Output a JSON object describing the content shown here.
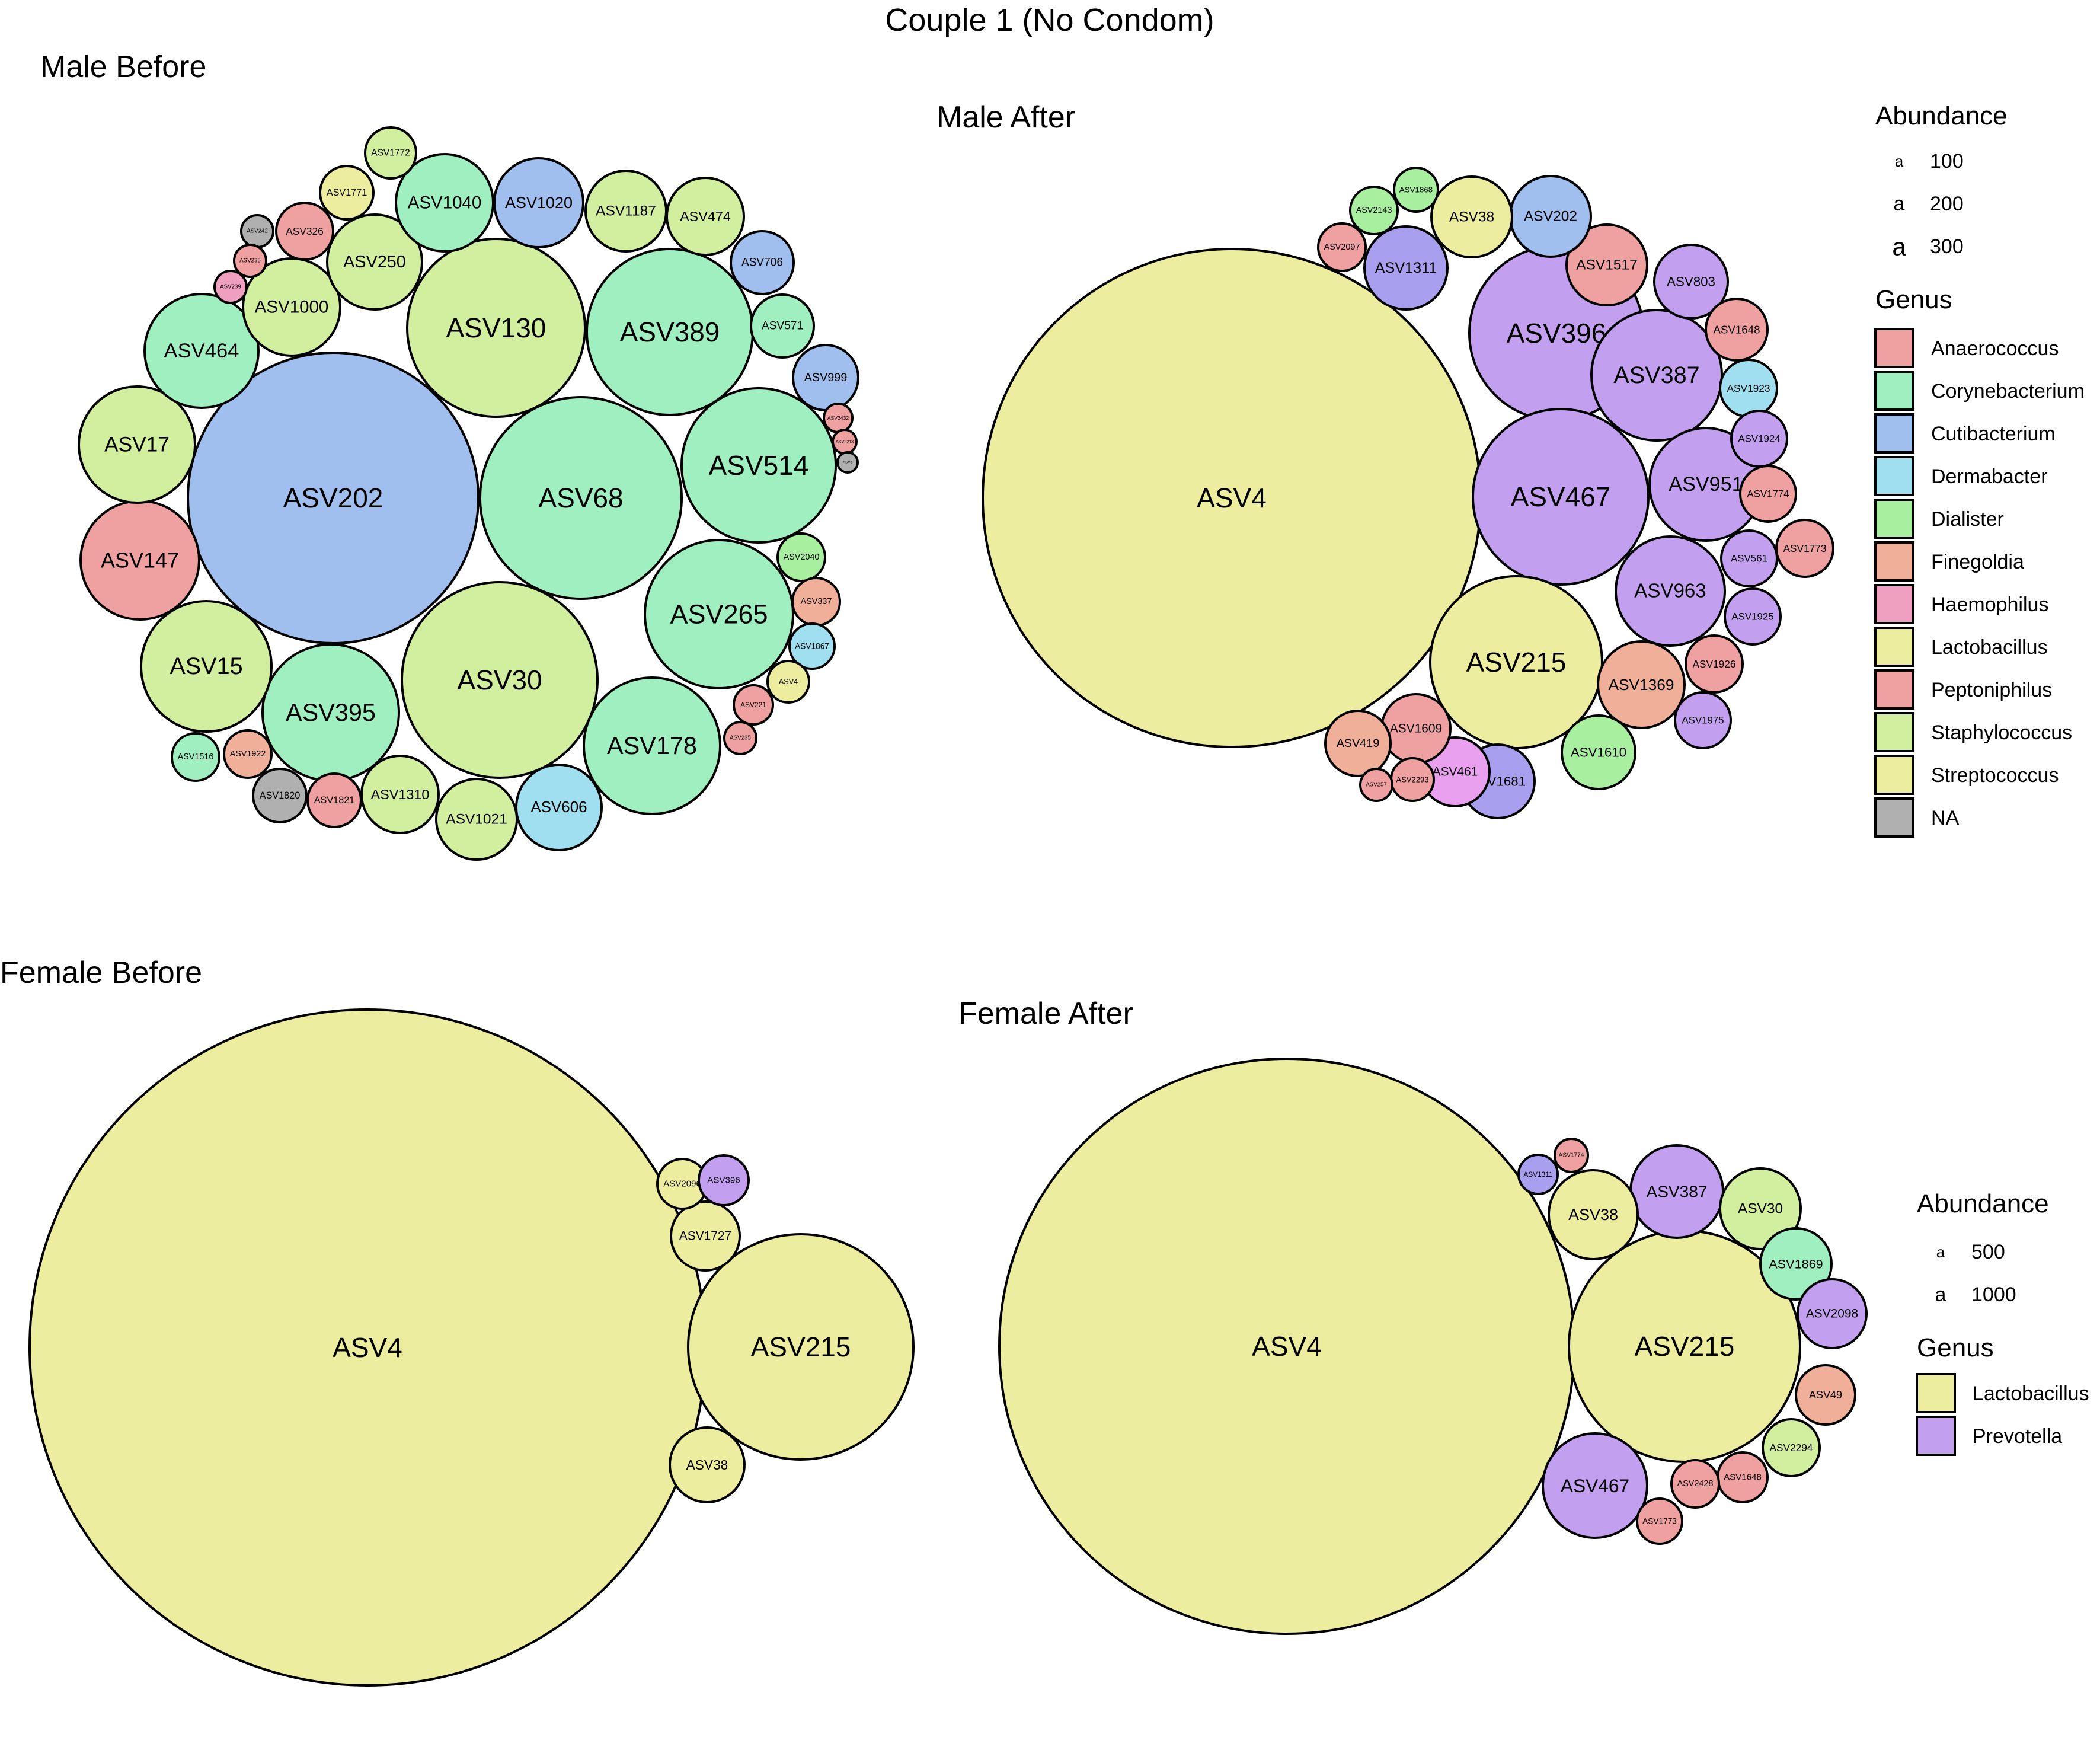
{
  "title": "Couple 1 (No Condom)",
  "genus_colors": {
    "Anaerococcus": "#EFA0A0",
    "Corynebacterium": "#A0EFC0",
    "Cutibacterium": "#A0BFEF",
    "Dermabacter": "#A0DFEF",
    "Dialister": "#A8EFA0",
    "Finegoldia": "#EFAF98",
    "Haemophilus": "#EFA0C0",
    "Lactobacillus": "#EDEDA0",
    "Peptoniphilus": "#EFA0A0",
    "Staphylococcus": "#D2EFA0",
    "Streptococcus": "#EDEDA0",
    "Prevotella": "#C2A0EF",
    "NA": "#B0B0B0",
    "Purple_ASV461": "#E8A0EF",
    "Purple_mid": "#A8A0EF"
  },
  "legends": [
    {
      "abundance_title": "Abundance",
      "abundance_entries": [
        {
          "glyph": "a",
          "label": "100"
        },
        {
          "glyph": "a",
          "label": "200"
        },
        {
          "glyph": "a",
          "label": "300"
        }
      ],
      "genus_title": "Genus",
      "genus_entries": [
        {
          "label": "Anaerococcus",
          "color": "#EFA0A0"
        },
        {
          "label": "Corynebacterium",
          "color": "#A0EFC0"
        },
        {
          "label": "Cutibacterium",
          "color": "#A0BFEF"
        },
        {
          "label": "Dermabacter",
          "color": "#A0DFEF"
        },
        {
          "label": "Dialister",
          "color": "#A8EFA0"
        },
        {
          "label": "Finegoldia",
          "color": "#EFAF98"
        },
        {
          "label": "Haemophilus",
          "color": "#EFA0C0"
        },
        {
          "label": "Lactobacillus",
          "color": "#EDEDA0"
        },
        {
          "label": "Peptoniphilus",
          "color": "#EFA0A0"
        },
        {
          "label": "Staphylococcus",
          "color": "#D2EFA0"
        },
        {
          "label": "Streptococcus",
          "color": "#EDEDA0"
        },
        {
          "label": "NA",
          "color": "#B0B0B0"
        }
      ]
    },
    {
      "abundance_title": "Abundance",
      "abundance_entries": [
        {
          "glyph": "a",
          "label": "500"
        },
        {
          "glyph": "a",
          "label": "1000"
        }
      ],
      "genus_title": "Genus",
      "genus_entries": [
        {
          "label": "Lactobacillus",
          "color": "#EDEDA0"
        },
        {
          "label": "Prevotella",
          "color": "#C2A0EF"
        }
      ]
    }
  ],
  "chart_data": [
    {
      "type": "bubble-pack",
      "title": "Male Before",
      "bubbles": [
        {
          "label": "ASV202",
          "genus": "Cutibacterium",
          "abundance": 540
        },
        {
          "label": "ASV68",
          "genus": "Corynebacterium",
          "abundance": 280
        },
        {
          "label": "ASV130",
          "genus": "Staphylococcus",
          "abundance": 240
        },
        {
          "label": "ASV389",
          "genus": "Corynebacterium",
          "abundance": 220
        },
        {
          "label": "ASV30",
          "genus": "Staphylococcus",
          "abundance": 250
        },
        {
          "label": "ASV514",
          "genus": "Corynebacterium",
          "abundance": 160
        },
        {
          "label": "ASV265",
          "genus": "Corynebacterium",
          "abundance": 150
        },
        {
          "label": "ASV178",
          "genus": "Corynebacterium",
          "abundance": 130
        },
        {
          "label": "ASV395",
          "genus": "Corynebacterium",
          "abundance": 120
        },
        {
          "label": "ASV147",
          "genus": "Peptoniphilus",
          "abundance": 95
        },
        {
          "label": "ASV15",
          "genus": "Staphylococcus",
          "abundance": 110
        },
        {
          "label": "ASV17",
          "genus": "Staphylococcus",
          "abundance": 90
        },
        {
          "label": "ASV464",
          "genus": "Corynebacterium",
          "abundance": 80
        },
        {
          "label": "ASV1000",
          "genus": "Staphylococcus",
          "abundance": 60
        },
        {
          "label": "ASV250",
          "genus": "Staphylococcus",
          "abundance": 60
        },
        {
          "label": "ASV1040",
          "genus": "Corynebacterium",
          "abundance": 65
        },
        {
          "label": "ASV1020",
          "genus": "Cutibacterium",
          "abundance": 55
        },
        {
          "label": "ASV1187",
          "genus": "Staphylococcus",
          "abundance": 45
        },
        {
          "label": "ASV474",
          "genus": "Staphylococcus",
          "abundance": 40
        },
        {
          "label": "ASV706",
          "genus": "Cutibacterium",
          "abundance": 30
        },
        {
          "label": "ASV571",
          "genus": "Corynebacterium",
          "abundance": 28
        },
        {
          "label": "ASV999",
          "genus": "Cutibacterium",
          "abundance": 28
        },
        {
          "label": "ASV1772",
          "genus": "Staphylococcus",
          "abundance": 18
        },
        {
          "label": "ASV1771",
          "genus": "Lactobacillus",
          "abundance": 20
        },
        {
          "label": "ASV326",
          "genus": "Peptoniphilus",
          "abundance": 22
        },
        {
          "label": "ASV242",
          "genus": "NA",
          "abundance": 5
        },
        {
          "label": "ASV235",
          "genus": "Peptoniphilus",
          "abundance": 5
        },
        {
          "label": "ASV239",
          "genus": "Haemophilus",
          "abundance": 5
        },
        {
          "label": "ASV2432",
          "genus": "Peptoniphilus",
          "abundance": 3
        },
        {
          "label": "ASV2213",
          "genus": "Peptoniphilus",
          "abundance": 2
        },
        {
          "label": "ASV5",
          "genus": "NA",
          "abundance": 2
        },
        {
          "label": "ASV2040",
          "genus": "Dialister",
          "abundance": 12
        },
        {
          "label": "ASV337",
          "genus": "Finegoldia",
          "abundance": 12
        },
        {
          "label": "ASV1867",
          "genus": "Dermabacter",
          "abundance": 12
        },
        {
          "label": "ASV4",
          "genus": "Lactobacillus",
          "abundance": 9
        },
        {
          "label": "ASV221",
          "genus": "Peptoniphilus",
          "abundance": 8
        },
        {
          "label": "ASV235",
          "genus": "Peptoniphilus",
          "abundance": 6
        },
        {
          "label": "ASV1516",
          "genus": "Corynebacterium",
          "abundance": 14
        },
        {
          "label": "ASV1922",
          "genus": "Finegoldia",
          "abundance": 15
        },
        {
          "label": "ASV1820",
          "genus": "NA",
          "abundance": 18
        },
        {
          "label": "ASV1821",
          "genus": "Peptoniphilus",
          "abundance": 18
        },
        {
          "label": "ASV1310",
          "genus": "Staphylococcus",
          "abundance": 35
        },
        {
          "label": "ASV1021",
          "genus": "Staphylococcus",
          "abundance": 40
        },
        {
          "label": "ASV606",
          "genus": "Dermabacter",
          "abundance": 45
        }
      ]
    },
    {
      "type": "bubble-pack",
      "title": "Male After",
      "bubbles": [
        {
          "label": "ASV4",
          "genus": "Lactobacillus",
          "abundance": 1600
        },
        {
          "label": "ASV396",
          "genus": "Prevotella",
          "abundance": 170
        },
        {
          "label": "ASV467",
          "genus": "Prevotella",
          "abundance": 200
        },
        {
          "label": "ASV387",
          "genus": "Prevotella",
          "abundance": 110
        },
        {
          "label": "ASV215",
          "genus": "Lactobacillus",
          "abundance": 190
        },
        {
          "label": "ASV951",
          "genus": "Prevotella",
          "abundance": 80
        },
        {
          "label": "ASV963",
          "genus": "Prevotella",
          "abundance": 80
        },
        {
          "label": "ASV1369",
          "genus": "Finegoldia",
          "abundance": 48
        },
        {
          "label": "ASV1517",
          "genus": "Peptoniphilus",
          "abundance": 40
        },
        {
          "label": "ASV803",
          "genus": "Prevotella",
          "abundance": 35
        },
        {
          "label": "ASV202",
          "genus": "Cutibacterium",
          "abundance": 35
        },
        {
          "label": "ASV38",
          "genus": "Lactobacillus",
          "abundance": 38
        },
        {
          "label": "ASV1311",
          "genus": "Purple_mid",
          "abundance": 40
        },
        {
          "label": "ASV1868",
          "genus": "Dialister",
          "abundance": 12
        },
        {
          "label": "ASV2143",
          "genus": "Dialister",
          "abundance": 14
        },
        {
          "label": "ASV2097",
          "genus": "Peptoniphilus",
          "abundance": 13
        },
        {
          "label": "ASV1648",
          "genus": "Peptoniphilus",
          "abundance": 20
        },
        {
          "label": "ASV1923",
          "genus": "Dermabacter",
          "abundance": 18
        },
        {
          "label": "ASV1924",
          "genus": "Prevotella",
          "abundance": 18
        },
        {
          "label": "ASV1774",
          "genus": "Peptoniphilus",
          "abundance": 18
        },
        {
          "label": "ASV1773",
          "genus": "Peptoniphilus",
          "abundance": 18
        },
        {
          "label": "ASV561",
          "genus": "Prevotella",
          "abundance": 18
        },
        {
          "label": "ASV1925",
          "genus": "Prevotella",
          "abundance": 18
        },
        {
          "label": "ASV1926",
          "genus": "Peptoniphilus",
          "abundance": 18
        },
        {
          "label": "ASV1975",
          "genus": "Prevotella",
          "abundance": 17
        },
        {
          "label": "ASV1610",
          "genus": "Dialister",
          "abundance": 30
        },
        {
          "label": "ASV1681",
          "genus": "Purple_mid",
          "abundance": 28
        },
        {
          "label": "ASV461",
          "genus": "Purple_ASV461",
          "abundance": 28
        },
        {
          "label": "ASV1609",
          "genus": "Peptoniphilus",
          "abundance": 26
        },
        {
          "label": "ASV419",
          "genus": "Finegoldia",
          "abundance": 22
        },
        {
          "label": "ASV2293",
          "genus": "Peptoniphilus",
          "abundance": 10
        },
        {
          "label": "ASV257",
          "genus": "Peptoniphilus",
          "abundance": 5
        }
      ]
    },
    {
      "type": "bubble-pack",
      "title": "Female Before",
      "bubbles": [
        {
          "label": "ASV4",
          "genus": "Lactobacillus",
          "abundance": 3000
        },
        {
          "label": "ASV215",
          "genus": "Lactobacillus",
          "abundance": 340
        },
        {
          "label": "ASV1727",
          "genus": "Lactobacillus",
          "abundance": 28
        },
        {
          "label": "ASV2096",
          "genus": "Lactobacillus",
          "abundance": 15
        },
        {
          "label": "ASV396",
          "genus": "Prevotella",
          "abundance": 15
        },
        {
          "label": "ASV38",
          "genus": "Lactobacillus",
          "abundance": 30
        }
      ]
    },
    {
      "type": "bubble-pack",
      "title": "Female After",
      "bubbles": [
        {
          "label": "ASV4",
          "genus": "Lactobacillus",
          "abundance": 2300
        },
        {
          "label": "ASV215",
          "genus": "Lactobacillus",
          "abundance": 370
        },
        {
          "label": "ASV387",
          "genus": "Prevotella",
          "abundance": 60
        },
        {
          "label": "ASV467",
          "genus": "Prevotella",
          "abundance": 75
        },
        {
          "label": "ASV38",
          "genus": "Lactobacillus",
          "abundance": 55
        },
        {
          "label": "ASV30",
          "genus": "Staphylococcus",
          "abundance": 42
        },
        {
          "label": "ASV1869",
          "genus": "Corynebacterium",
          "abundance": 35
        },
        {
          "label": "ASV2098",
          "genus": "Prevotella",
          "abundance": 35
        },
        {
          "label": "ASV49",
          "genus": "Finegoldia",
          "abundance": 30
        },
        {
          "label": "ASV2294",
          "genus": "Staphylococcus",
          "abundance": 24
        },
        {
          "label": "ASV1648",
          "genus": "Peptoniphilus",
          "abundance": 20
        },
        {
          "label": "ASV2428",
          "genus": "Peptoniphilus",
          "abundance": 15
        },
        {
          "label": "ASV1773",
          "genus": "Peptoniphilus",
          "abundance": 15
        },
        {
          "label": "ASV1311",
          "genus": "Purple_mid",
          "abundance": 10
        },
        {
          "label": "ASV1774",
          "genus": "Peptoniphilus",
          "abundance": 7
        }
      ]
    }
  ]
}
